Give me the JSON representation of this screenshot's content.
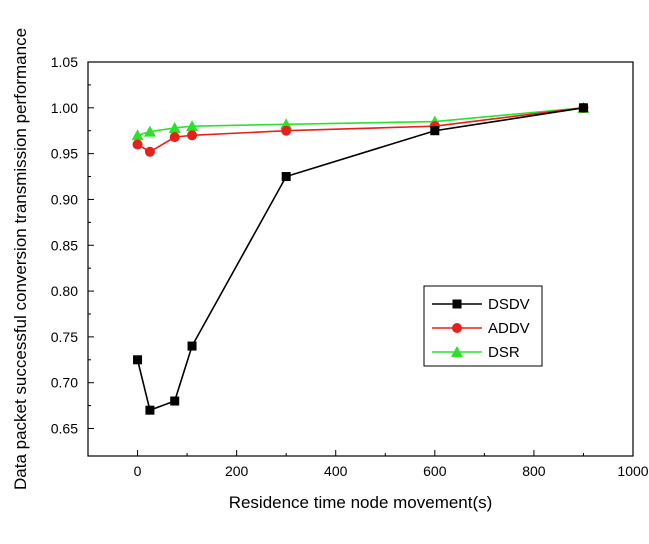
{
  "chart_data": {
    "type": "line",
    "title": "",
    "xlabel": "Residence time node movement(s)",
    "ylabel": "Data packet successful conversion transmission performance",
    "xlim": [
      -100,
      1000
    ],
    "ylim": [
      0.62,
      1.05
    ],
    "xticks": [
      0,
      200,
      400,
      600,
      800,
      1000
    ],
    "yticks": [
      0.65,
      0.7,
      0.75,
      0.8,
      0.85,
      0.9,
      0.95,
      1.0,
      1.05
    ],
    "xtick_labels": [
      "0",
      "200",
      "400",
      "600",
      "800",
      "1000"
    ],
    "ytick_labels": [
      "0.65",
      "0.70",
      "0.75",
      "0.80",
      "0.85",
      "0.90",
      "0.95",
      "1.00",
      "1.05"
    ],
    "grid": false,
    "legend_position": "center-right",
    "series": [
      {
        "name": "DSDV",
        "color": "#000000",
        "marker": "square",
        "x": [
          0,
          25,
          75,
          110,
          300,
          600,
          900
        ],
        "y": [
          0.725,
          0.67,
          0.68,
          0.74,
          0.925,
          0.975,
          1.0
        ]
      },
      {
        "name": "ADDV",
        "color": "#e8201a",
        "marker": "circle",
        "x": [
          0,
          25,
          75,
          110,
          300,
          600,
          900
        ],
        "y": [
          0.96,
          0.952,
          0.968,
          0.97,
          0.975,
          0.98,
          1.0
        ]
      },
      {
        "name": "DSR",
        "color": "#2ee02e",
        "marker": "triangle",
        "x": [
          0,
          25,
          75,
          110,
          300,
          600,
          900
        ],
        "y": [
          0.97,
          0.974,
          0.978,
          0.98,
          0.982,
          0.985,
          1.0
        ]
      }
    ]
  }
}
